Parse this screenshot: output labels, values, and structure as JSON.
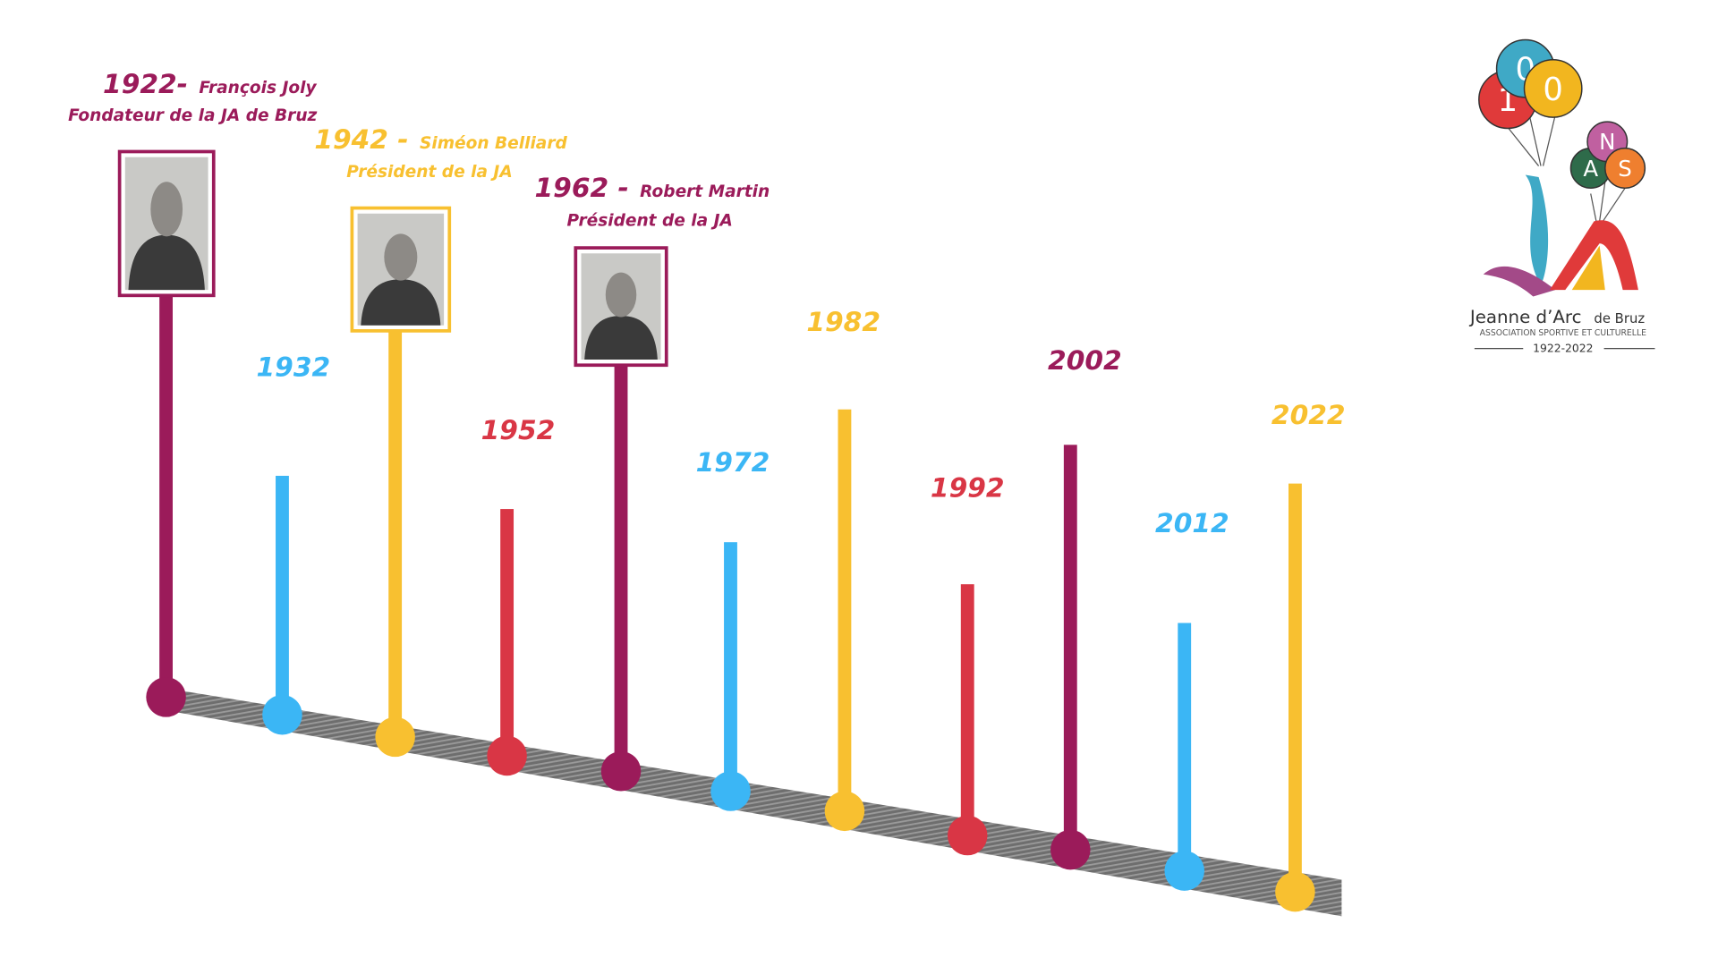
{
  "timeline": [
    {
      "year": "1922-",
      "name": "François Joly",
      "role": "Fondateur de la JA de Bruz"
    },
    {
      "year": "1932"
    },
    {
      "year": "1942 -",
      "name": "Siméon Belliard",
      "role": "Président de la JA"
    },
    {
      "year": "1952"
    },
    {
      "year": "1962 -",
      "name": "Robert Martin",
      "role": "Président de la JA"
    },
    {
      "year": "1972"
    },
    {
      "year": "1982"
    },
    {
      "year": "1992"
    },
    {
      "year": "2002"
    },
    {
      "year": "2012"
    },
    {
      "year": "2022"
    }
  ],
  "logo": {
    "balloons": [
      "1",
      "0",
      "0",
      "A",
      "N",
      "S"
    ],
    "name": "Jeanne d’Arc",
    "place": "de Bruz",
    "subtitle": "ASSOCIATION SPORTIVE ET CULTURELLE",
    "years": "1922-2022"
  }
}
